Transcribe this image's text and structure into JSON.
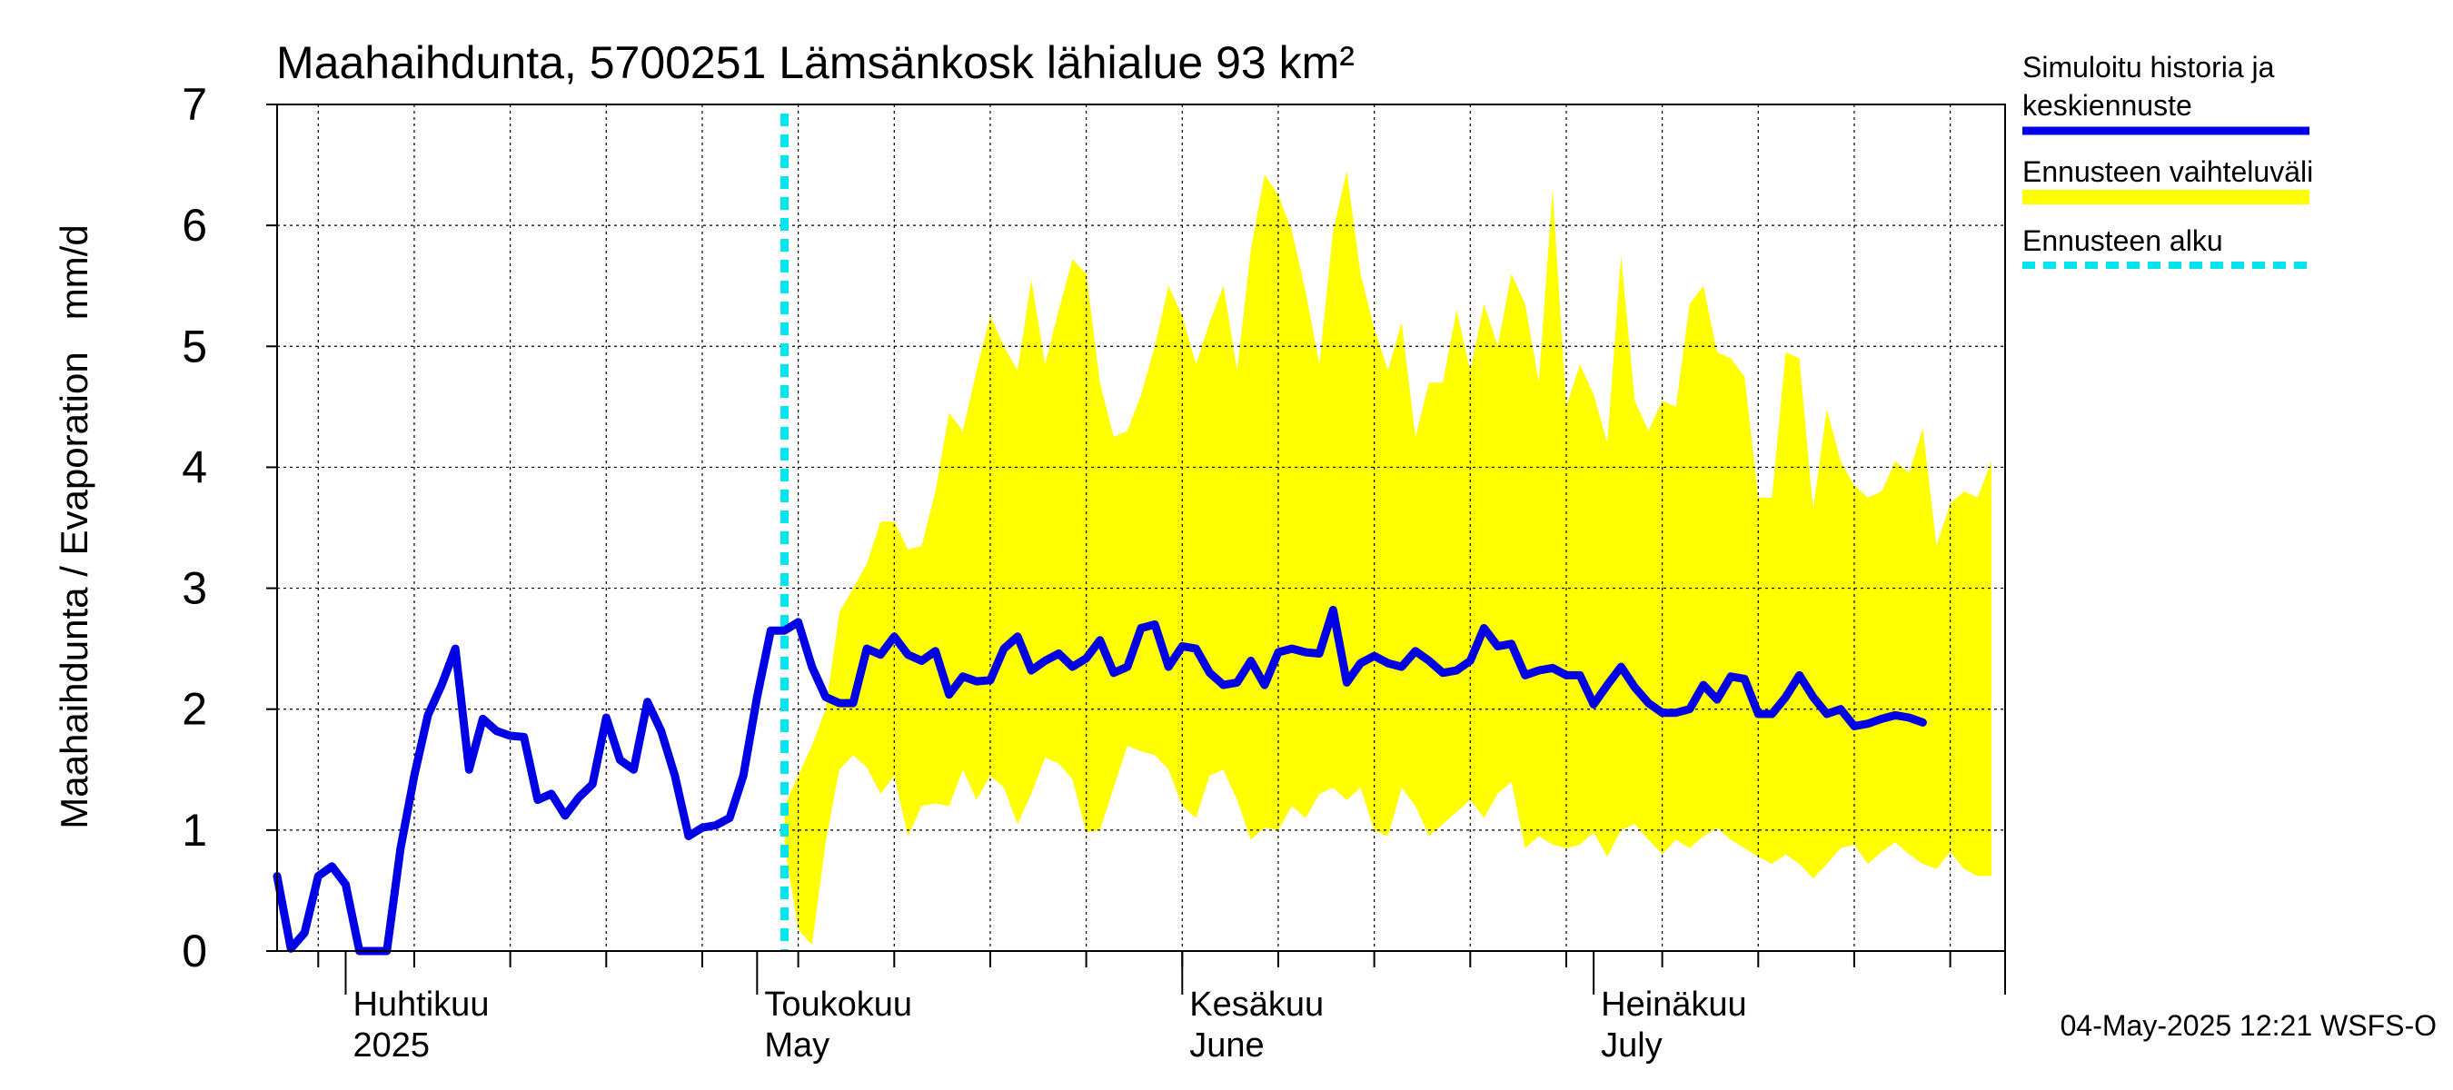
{
  "chart_data": {
    "type": "line",
    "title": "Maahaihdunta, 5700251 Lämsänkosk lähialue 93 km²",
    "ylabel": "Maahaihdunta / Evaporation   mm/d",
    "ylim": [
      0,
      7
    ],
    "yticks": [
      0,
      1,
      2,
      3,
      4,
      5,
      6,
      7
    ],
    "xlim": [
      "2025-03-27",
      "2025-07-31"
    ],
    "grid": true,
    "legend_position": "right",
    "timestamp": "04-May-2025 12:21 WSFS-O",
    "month_labels": [
      {
        "date": "2025-04-01",
        "fi": "Huhtikuu",
        "en": "2025"
      },
      {
        "date": "2025-05-01",
        "fi": "Toukokuu",
        "en": "May"
      },
      {
        "date": "2025-06-01",
        "fi": "Kesäkuu",
        "en": "June"
      },
      {
        "date": "2025-07-01",
        "fi": "Heinäkuu",
        "en": "July"
      }
    ],
    "forecast_start": "2025-05-03",
    "legend": [
      {
        "key": "sim",
        "label": "Simuloitu historia ja keskiennuste",
        "lines": [
          "Simuloitu historia ja",
          "keskiennuste"
        ],
        "color": "#0000e6",
        "style": "solid"
      },
      {
        "key": "band",
        "label": "Ennusteen vaihteluväli",
        "lines": [
          "Ennusteen vaihteluväli"
        ],
        "color": "#ffff00",
        "style": "band"
      },
      {
        "key": "start",
        "label": "Ennusteen alku",
        "lines": [
          "Ennusteen alku"
        ],
        "color": "#00e5ee",
        "style": "dashed"
      }
    ],
    "series": [
      {
        "key": "sim",
        "name": "Simuloitu historia ja keskiennuste",
        "start_date": "2025-03-27",
        "values": [
          0.62,
          0.02,
          0.15,
          0.62,
          0.7,
          0.55,
          0.0,
          0.0,
          0.0,
          0.85,
          1.45,
          1.95,
          2.2,
          2.5,
          1.5,
          1.92,
          1.82,
          1.78,
          1.77,
          1.25,
          1.3,
          1.12,
          1.27,
          1.38,
          1.93,
          1.58,
          1.5,
          2.06,
          1.82,
          1.45,
          0.95,
          1.02,
          1.04,
          1.1,
          1.45,
          2.1,
          2.65,
          2.65,
          2.72,
          2.35,
          2.1,
          2.05,
          2.05,
          2.5,
          2.45,
          2.6,
          2.45,
          2.4,
          2.48,
          2.12,
          2.27,
          2.23,
          2.24,
          2.5,
          2.6,
          2.32,
          2.4,
          2.46,
          2.35,
          2.42,
          2.57,
          2.3,
          2.35,
          2.67,
          2.7,
          2.35,
          2.52,
          2.5,
          2.3,
          2.2,
          2.22,
          2.4,
          2.2,
          2.47,
          2.5,
          2.47,
          2.46,
          2.82,
          2.22,
          2.38,
          2.44,
          2.38,
          2.35,
          2.48,
          2.4,
          2.3,
          2.32,
          2.4,
          2.67,
          2.52,
          2.54,
          2.28,
          2.32,
          2.34,
          2.28,
          2.28,
          2.04,
          2.2,
          2.35,
          2.18,
          2.05,
          1.97,
          1.97,
          2.0,
          2.2,
          2.08,
          2.27,
          2.25,
          1.96,
          1.96,
          2.1,
          2.28,
          2.1,
          1.96,
          2.0,
          1.86,
          1.88,
          1.92,
          1.95,
          1.93,
          1.89
        ]
      },
      {
        "key": "band",
        "name": "Ennusteen vaihteluväli",
        "start_date": "2025-05-03",
        "upper": [
          1.2,
          1.45,
          1.7,
          2.0,
          2.8,
          3.0,
          3.2,
          3.55,
          3.55,
          3.32,
          3.35,
          3.8,
          4.45,
          4.3,
          4.8,
          5.25,
          5.0,
          4.8,
          5.55,
          4.85,
          5.3,
          5.72,
          5.6,
          4.7,
          4.25,
          4.3,
          4.6,
          5.0,
          5.5,
          5.25,
          4.85,
          5.2,
          5.5,
          4.8,
          5.8,
          6.42,
          6.25,
          5.95,
          5.45,
          4.85,
          5.95,
          6.45,
          5.6,
          5.15,
          4.8,
          5.2,
          4.25,
          4.7,
          4.7,
          5.3,
          4.8,
          5.35,
          5.0,
          5.6,
          5.35,
          4.7,
          6.3,
          4.5,
          4.85,
          4.6,
          4.2,
          5.75,
          4.55,
          4.3,
          4.55,
          4.5,
          5.35,
          5.5,
          4.95,
          4.9,
          4.75,
          3.75,
          3.75,
          4.95,
          4.9,
          3.65,
          4.48,
          4.05,
          3.85,
          3.75,
          3.8,
          4.05,
          3.95,
          4.32,
          3.35,
          3.7,
          3.8,
          3.75,
          4.05
        ],
        "lower": [
          0.88,
          0.18,
          0.05,
          0.9,
          1.5,
          1.62,
          1.52,
          1.3,
          1.45,
          0.95,
          1.2,
          1.22,
          1.2,
          1.5,
          1.25,
          1.45,
          1.35,
          1.05,
          1.3,
          1.6,
          1.55,
          1.42,
          0.98,
          1.0,
          1.35,
          1.7,
          1.65,
          1.62,
          1.5,
          1.2,
          1.1,
          1.45,
          1.5,
          1.25,
          0.92,
          1.02,
          1.0,
          1.2,
          1.1,
          1.3,
          1.35,
          1.25,
          1.35,
          1.0,
          0.95,
          1.35,
          1.2,
          0.95,
          1.05,
          1.15,
          1.25,
          1.1,
          1.3,
          1.4,
          0.85,
          0.95,
          0.88,
          0.85,
          0.88,
          0.98,
          0.78,
          1.0,
          1.05,
          0.92,
          0.8,
          0.92,
          0.85,
          0.95,
          1.02,
          0.92,
          0.85,
          0.78,
          0.72,
          0.8,
          0.72,
          0.6,
          0.72,
          0.85,
          0.88,
          0.72,
          0.82,
          0.9,
          0.8,
          0.72,
          0.68,
          0.82,
          0.68,
          0.62,
          0.62
        ]
      }
    ]
  }
}
